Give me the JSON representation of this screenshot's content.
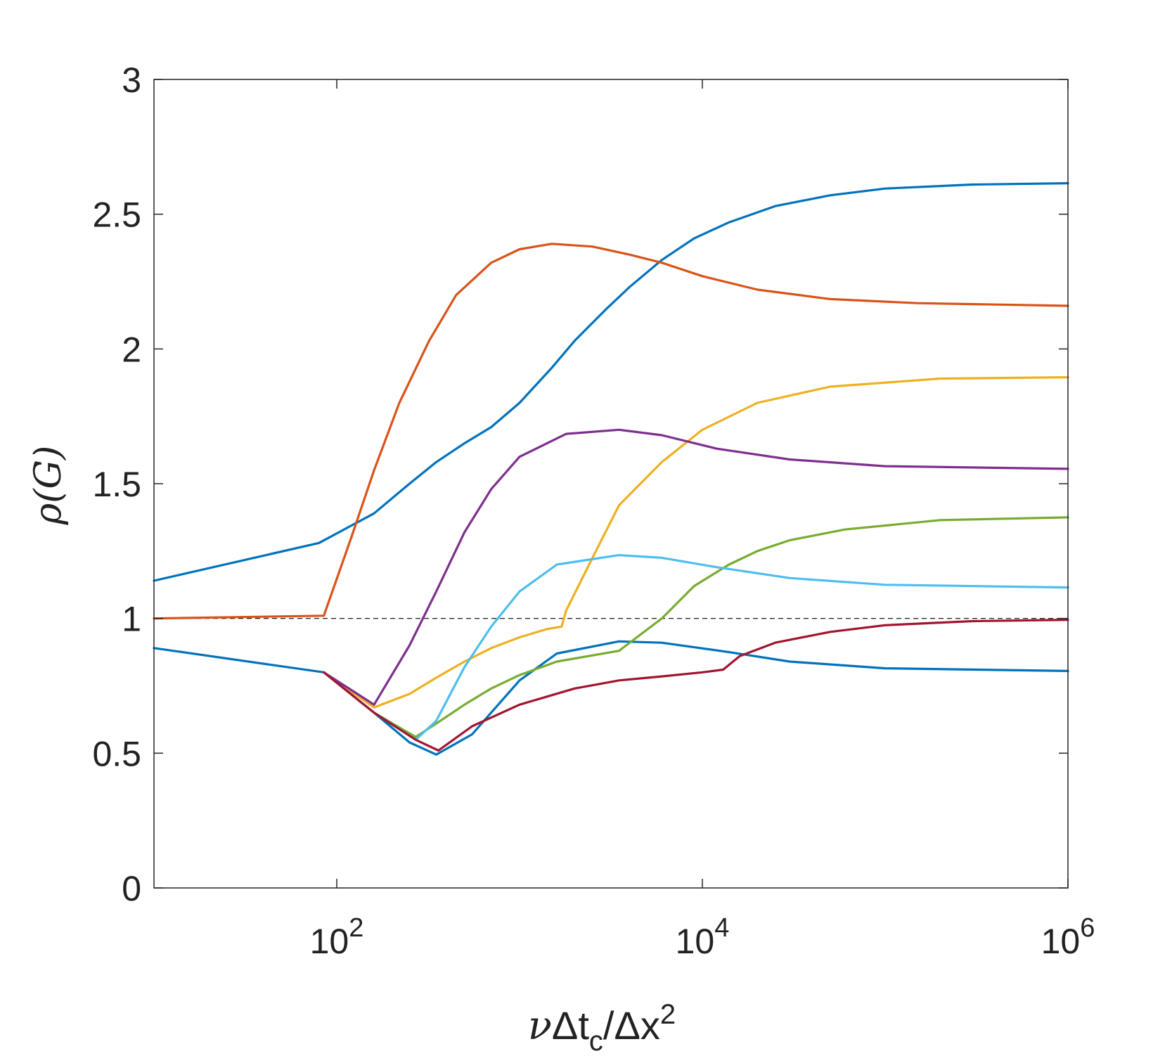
{
  "chart_data": {
    "type": "line",
    "xscale": "log",
    "xlim": [
      10,
      1000000
    ],
    "ylim": [
      0,
      3
    ],
    "xticks": [
      {
        "value": 100,
        "base": "10",
        "exp": "2"
      },
      {
        "value": 10000,
        "base": "10",
        "exp": "4"
      },
      {
        "value": 1000000,
        "base": "10",
        "exp": "6"
      }
    ],
    "yticks": [
      "0",
      "0.5",
      "1",
      "1.5",
      "2",
      "2.5",
      "3"
    ],
    "xlabel": {
      "greek": "ν",
      "delta1": "Δt",
      "sub": "c",
      "slash": "/Δx",
      "sup": "2"
    },
    "ylabel": "ρ(G)",
    "grid": false,
    "reference_line": {
      "y": 1,
      "style": "dashed",
      "color": "#000000"
    },
    "series": [
      {
        "color": "#0072BD",
        "points": [
          [
            10,
            1.14
          ],
          [
            80,
            1.28
          ],
          [
            160,
            1.39
          ],
          [
            250,
            1.5
          ],
          [
            350,
            1.58
          ],
          [
            500,
            1.65
          ],
          [
            700,
            1.71
          ],
          [
            1000,
            1.8
          ],
          [
            1500,
            1.93
          ],
          [
            2000,
            2.03
          ],
          [
            3000,
            2.15
          ],
          [
            4000,
            2.23
          ],
          [
            6000,
            2.33
          ],
          [
            9000,
            2.41
          ],
          [
            14000,
            2.47
          ],
          [
            25000,
            2.53
          ],
          [
            50000,
            2.57
          ],
          [
            100000,
            2.595
          ],
          [
            300000,
            2.61
          ],
          [
            1000000,
            2.615
          ]
        ]
      },
      {
        "color": "#D95319",
        "points": [
          [
            10,
            1.0
          ],
          [
            85,
            1.01
          ],
          [
            120,
            1.3
          ],
          [
            160,
            1.55
          ],
          [
            220,
            1.8
          ],
          [
            320,
            2.03
          ],
          [
            450,
            2.2
          ],
          [
            700,
            2.32
          ],
          [
            1000,
            2.37
          ],
          [
            1500,
            2.39
          ],
          [
            2500,
            2.38
          ],
          [
            4000,
            2.35
          ],
          [
            6000,
            2.32
          ],
          [
            10000,
            2.27
          ],
          [
            20000,
            2.22
          ],
          [
            50000,
            2.185
          ],
          [
            150000,
            2.17
          ],
          [
            1000000,
            2.16
          ]
        ]
      },
      {
        "color": "#0072BD",
        "points": [
          [
            10,
            0.89
          ],
          [
            85,
            0.8
          ],
          [
            160,
            0.65
          ],
          [
            250,
            0.54
          ],
          [
            350,
            0.495
          ],
          [
            550,
            0.57
          ],
          [
            1000,
            0.77
          ],
          [
            1600,
            0.87
          ],
          [
            3500,
            0.915
          ],
          [
            6000,
            0.91
          ],
          [
            14000,
            0.875
          ],
          [
            30000,
            0.84
          ],
          [
            100000,
            0.815
          ],
          [
            1000000,
            0.805
          ]
        ]
      },
      {
        "color": "#EDB120",
        "points": [
          [
            85,
            0.8
          ],
          [
            160,
            0.67
          ],
          [
            250,
            0.72
          ],
          [
            350,
            0.78
          ],
          [
            500,
            0.84
          ],
          [
            700,
            0.89
          ],
          [
            1000,
            0.93
          ],
          [
            1400,
            0.96
          ],
          [
            1700,
            0.97
          ],
          [
            1800,
            1.03
          ],
          [
            2400,
            1.2
          ],
          [
            3500,
            1.42
          ],
          [
            6000,
            1.58
          ],
          [
            10000,
            1.7
          ],
          [
            20000,
            1.8
          ],
          [
            50000,
            1.86
          ],
          [
            200000,
            1.89
          ],
          [
            1000000,
            1.895
          ]
        ]
      },
      {
        "color": "#7E2F8E",
        "points": [
          [
            85,
            0.8
          ],
          [
            160,
            0.68
          ],
          [
            250,
            0.9
          ],
          [
            350,
            1.1
          ],
          [
            500,
            1.32
          ],
          [
            700,
            1.48
          ],
          [
            1000,
            1.6
          ],
          [
            1800,
            1.685
          ],
          [
            3500,
            1.7
          ],
          [
            6000,
            1.68
          ],
          [
            12000,
            1.63
          ],
          [
            30000,
            1.59
          ],
          [
            100000,
            1.565
          ],
          [
            1000000,
            1.555
          ]
        ]
      },
      {
        "color": "#77AC30",
        "points": [
          [
            85,
            0.8
          ],
          [
            160,
            0.65
          ],
          [
            270,
            0.56
          ],
          [
            350,
            0.61
          ],
          [
            500,
            0.68
          ],
          [
            700,
            0.74
          ],
          [
            1000,
            0.79
          ],
          [
            1600,
            0.84
          ],
          [
            3500,
            0.88
          ],
          [
            6000,
            1.0
          ],
          [
            9000,
            1.12
          ],
          [
            14000,
            1.2
          ],
          [
            20000,
            1.25
          ],
          [
            30000,
            1.29
          ],
          [
            60000,
            1.33
          ],
          [
            200000,
            1.365
          ],
          [
            1000000,
            1.375
          ]
        ]
      },
      {
        "color": "#4DBEEE",
        "points": [
          [
            85,
            0.8
          ],
          [
            160,
            0.65
          ],
          [
            270,
            0.55
          ],
          [
            350,
            0.62
          ],
          [
            500,
            0.82
          ],
          [
            700,
            0.97
          ],
          [
            1000,
            1.1
          ],
          [
            1600,
            1.2
          ],
          [
            3500,
            1.235
          ],
          [
            6000,
            1.225
          ],
          [
            12000,
            1.19
          ],
          [
            30000,
            1.15
          ],
          [
            100000,
            1.125
          ],
          [
            1000000,
            1.115
          ]
        ]
      },
      {
        "color": "#A2142F",
        "points": [
          [
            85,
            0.8
          ],
          [
            160,
            0.65
          ],
          [
            270,
            0.55
          ],
          [
            360,
            0.51
          ],
          [
            550,
            0.6
          ],
          [
            1000,
            0.68
          ],
          [
            2000,
            0.74
          ],
          [
            3500,
            0.77
          ],
          [
            6000,
            0.785
          ],
          [
            10000,
            0.8
          ],
          [
            13000,
            0.81
          ],
          [
            16000,
            0.86
          ],
          [
            25000,
            0.91
          ],
          [
            50000,
            0.95
          ],
          [
            100000,
            0.975
          ],
          [
            300000,
            0.99
          ],
          [
            1000000,
            0.995
          ]
        ]
      }
    ]
  }
}
